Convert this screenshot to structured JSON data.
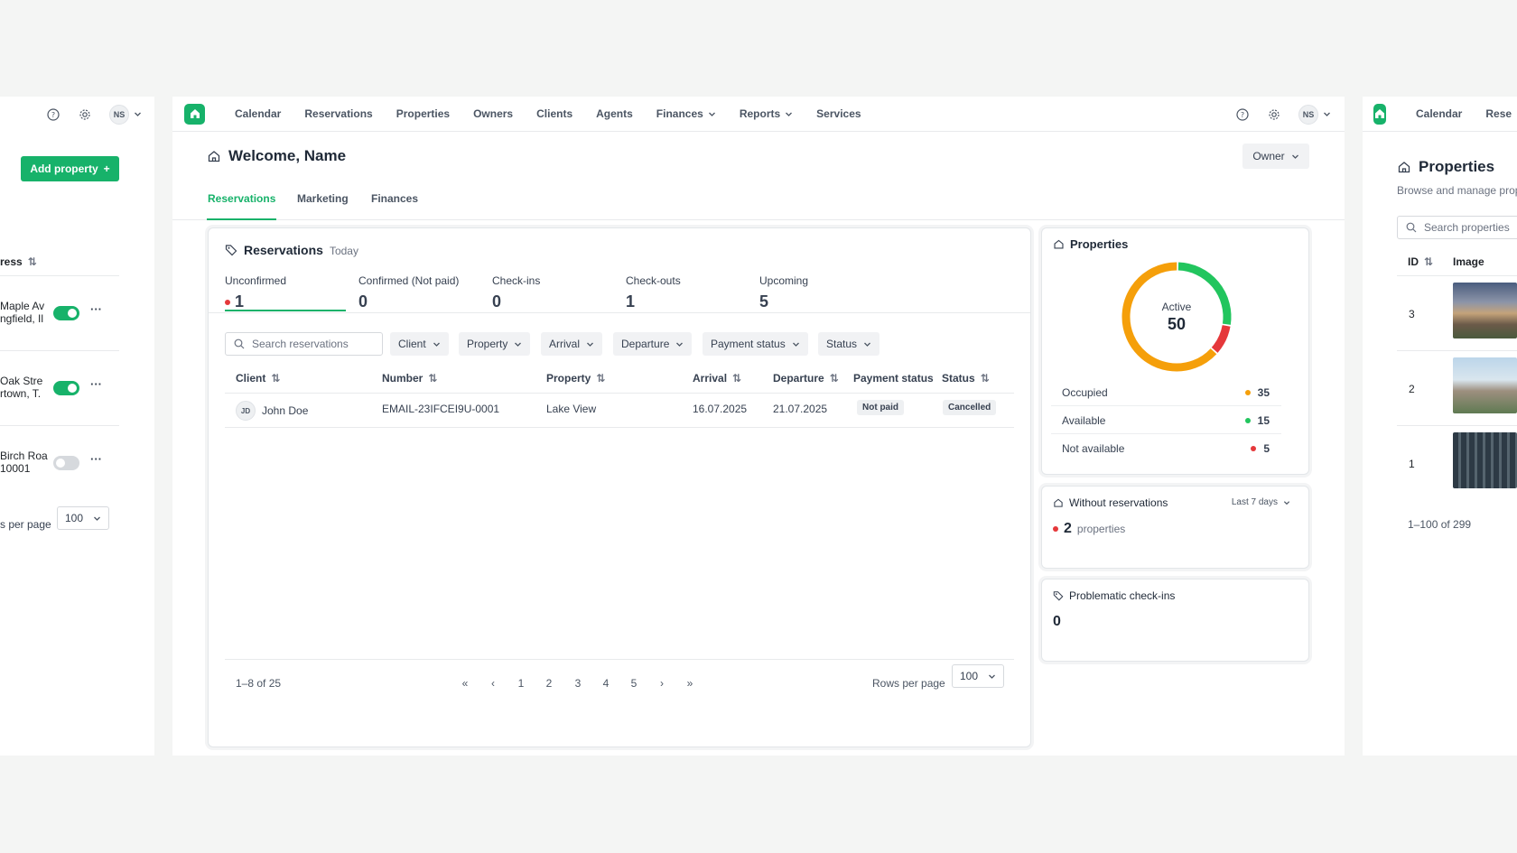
{
  "colors": {
    "accent": "#17b26a",
    "red": "#e5383b",
    "orange": "#f59f0a",
    "green": "#22c55e"
  },
  "left_panel": {
    "avatar": "NS",
    "add_property_label": "Add property",
    "address_header": "ress",
    "rows": [
      {
        "line1": "Maple Av",
        "line2": "ngfield, Il",
        "active": true
      },
      {
        "line1": "Oak Stre",
        "line2": "rtown, T.",
        "active": true
      },
      {
        "line1": "Birch Roa",
        "line2": "10001",
        "active": false
      }
    ],
    "rows_per_page_label": "s per page",
    "rows_per_page_value": "100"
  },
  "main": {
    "nav": [
      "Calendar",
      "Reservations",
      "Properties",
      "Owners",
      "Clients",
      "Agents",
      "Finances",
      "Reports",
      "Services"
    ],
    "avatar": "NS",
    "welcome": "Welcome, Name",
    "role_select": "Owner",
    "tabs": [
      "Reservations",
      "Marketing",
      "Finances"
    ],
    "reservations": {
      "title": "Reservations",
      "subtitle": "Today",
      "stats": [
        {
          "label": "Unconfirmed",
          "value": "1"
        },
        {
          "label": "Confirmed (Not paid)",
          "value": "0"
        },
        {
          "label": "Check-ins",
          "value": "0"
        },
        {
          "label": "Check-outs",
          "value": "1"
        },
        {
          "label": "Upcoming",
          "value": "5"
        }
      ],
      "search_placeholder": "Search reservations",
      "filters": [
        "Client",
        "Property",
        "Arrival",
        "Departure",
        "Payment status",
        "Status"
      ],
      "columns": [
        "Client",
        "Number",
        "Property",
        "Arrival",
        "Departure",
        "Payment status",
        "Status"
      ],
      "rows": [
        {
          "initials": "JD",
          "client": "John Doe",
          "number": "EMAIL-23IFCEI9U-0001",
          "property": "Lake View",
          "arrival": "16.07.2025",
          "departure": "21.07.2025",
          "payment_status": "Not paid",
          "status": "Cancelled"
        }
      ],
      "range": "1–8 of 25",
      "pages": [
        "1",
        "2",
        "3",
        "4",
        "5"
      ],
      "rows_per_page_label": "Rows per page",
      "rows_per_page_value": "100"
    },
    "properties_card": {
      "title": "Properties",
      "center_label": "Active",
      "center_value": "50",
      "legend": [
        {
          "label": "Occupied",
          "value": 35,
          "color": "#f59f0a"
        },
        {
          "label": "Available",
          "value": 15,
          "color": "#22c55e"
        },
        {
          "label": "Not available",
          "value": 5,
          "color": "#e5383b"
        }
      ]
    },
    "without_reservations": {
      "title": "Without reservations",
      "period": "Last 7 days",
      "count": "2",
      "unit": "properties"
    },
    "problematic": {
      "title": "Problematic check-ins",
      "count": "0"
    }
  },
  "right_panel": {
    "nav": [
      "Calendar",
      "Rese"
    ],
    "title": "Properties",
    "subtitle": "Browse and manage prop",
    "search_placeholder": "Search properties",
    "columns": [
      "ID",
      "Image"
    ],
    "rows": [
      {
        "id": "3"
      },
      {
        "id": "2"
      },
      {
        "id": "1"
      }
    ],
    "range": "1–100 of 299"
  }
}
